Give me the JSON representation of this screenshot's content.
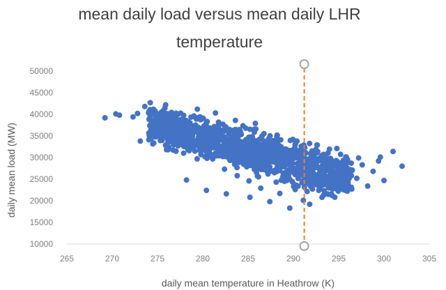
{
  "chart_data": {
    "type": "scatter",
    "title_lines": [
      "mean daily load versus mean daily LHR",
      "temperature"
    ],
    "xlabel": "daily mean temperature in Heathrow (K)",
    "ylabel": "daily mean load (MW)",
    "xlim": [
      265,
      305
    ],
    "ylim": [
      10000,
      50000
    ],
    "x_ticks": [
      "265",
      "270",
      "275",
      "280",
      "285",
      "290",
      "295",
      "300",
      "305"
    ],
    "y_ticks": [
      "10000",
      "15000",
      "20000",
      "25000",
      "30000",
      "35000",
      "40000",
      "45000",
      "50000"
    ],
    "grid": false,
    "legend": "none",
    "colors": {
      "points": "#4472c4",
      "marker_line": "#ed7d31",
      "marker_handle": "#a6a6a6"
    },
    "marker_line": {
      "x": 291.2
    },
    "series": [
      {
        "points": [
          [
            269.2,
            39200
          ],
          [
            270.4,
            40100
          ],
          [
            270.8,
            39800
          ],
          [
            272.3,
            39400
          ],
          [
            272.8,
            40200
          ],
          [
            273.1,
            33800
          ],
          [
            273.6,
            41800
          ],
          [
            274.2,
            42700
          ],
          [
            274.6,
            38200
          ],
          [
            275.0,
            36900
          ],
          [
            275.4,
            40400
          ],
          [
            275.9,
            42200
          ],
          [
            276.3,
            37800
          ],
          [
            276.8,
            35600
          ],
          [
            277.2,
            39900
          ],
          [
            277.6,
            33900
          ],
          [
            278.1,
            37400
          ],
          [
            278.5,
            31600
          ],
          [
            278.9,
            35800
          ],
          [
            279.3,
            38900
          ],
          [
            279.8,
            30700
          ],
          [
            280.2,
            34600
          ],
          [
            280.7,
            32800
          ],
          [
            281.1,
            29700
          ],
          [
            281.6,
            36700
          ],
          [
            282.0,
            31400
          ],
          [
            282.4,
            27300
          ],
          [
            282.9,
            33600
          ],
          [
            283.3,
            29400
          ],
          [
            283.8,
            25800
          ],
          [
            284.2,
            31800
          ],
          [
            284.6,
            28400
          ],
          [
            285.1,
            24600
          ],
          [
            285.5,
            30800
          ],
          [
            285.9,
            27600
          ],
          [
            286.4,
            22900
          ],
          [
            286.8,
            29300
          ],
          [
            287.2,
            26200
          ],
          [
            287.7,
            33100
          ],
          [
            288.1,
            24300
          ],
          [
            288.5,
            21700
          ],
          [
            289.0,
            27900
          ],
          [
            289.4,
            25400
          ],
          [
            289.8,
            30600
          ],
          [
            290.2,
            22600
          ],
          [
            290.7,
            26800
          ],
          [
            291.1,
            20100
          ],
          [
            291.5,
            28900
          ],
          [
            292.0,
            24800
          ],
          [
            292.4,
            31200
          ],
          [
            292.8,
            22400
          ],
          [
            293.3,
            27600
          ],
          [
            293.7,
            25300
          ],
          [
            294.1,
            29800
          ],
          [
            294.6,
            23600
          ],
          [
            295.0,
            26900
          ],
          [
            295.5,
            28700
          ],
          [
            296.0,
            24200
          ],
          [
            296.5,
            27100
          ],
          [
            297.0,
            25200
          ],
          [
            297.6,
            28300
          ],
          [
            298.2,
            23400
          ],
          [
            298.8,
            26800
          ],
          [
            299.4,
            29200
          ],
          [
            300.0,
            24700
          ],
          [
            301.0,
            31400
          ],
          [
            302.0,
            28000
          ],
          [
            276.0,
            31800
          ],
          [
            278.2,
            24800
          ],
          [
            280.4,
            22400
          ],
          [
            282.6,
            21600
          ],
          [
            285.2,
            20800
          ],
          [
            287.4,
            19800
          ],
          [
            289.6,
            18300
          ],
          [
            291.8,
            19200
          ],
          [
            294.2,
            21600
          ],
          [
            296.4,
            23100
          ],
          [
            279.4,
            41200
          ],
          [
            281.4,
            40300
          ],
          [
            283.6,
            38600
          ],
          [
            285.8,
            37900
          ],
          [
            288.2,
            35200
          ],
          [
            290.4,
            33800
          ],
          [
            292.6,
            32900
          ],
          [
            294.8,
            32100
          ],
          [
            297.2,
            29900
          ],
          [
            299.6,
            30100
          ]
        ]
      }
    ]
  }
}
